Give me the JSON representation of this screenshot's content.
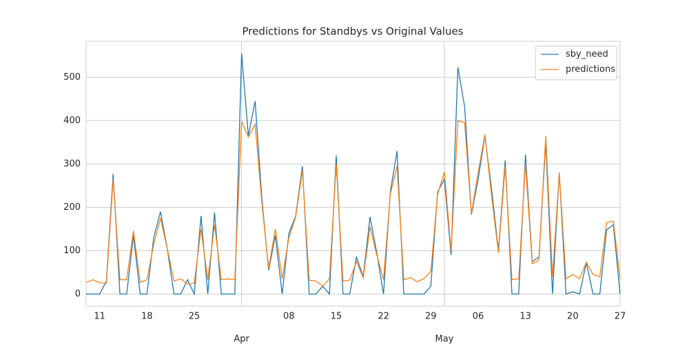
{
  "chart_data": {
    "type": "line",
    "title": "Predictions for Standbys vs Original Values",
    "x": [
      "03-09",
      "03-10",
      "03-11",
      "03-12",
      "03-13",
      "03-14",
      "03-15",
      "03-16",
      "03-17",
      "03-18",
      "03-19",
      "03-20",
      "03-21",
      "03-22",
      "03-23",
      "03-24",
      "03-25",
      "03-26",
      "03-27",
      "03-28",
      "03-29",
      "03-30",
      "03-31",
      "04-01",
      "04-02",
      "04-03",
      "04-04",
      "04-05",
      "04-06",
      "04-07",
      "04-08",
      "04-09",
      "04-10",
      "04-11",
      "04-12",
      "04-13",
      "04-14",
      "04-15",
      "04-16",
      "04-17",
      "04-18",
      "04-19",
      "04-20",
      "04-21",
      "04-22",
      "04-23",
      "04-24",
      "04-25",
      "04-26",
      "04-27",
      "04-28",
      "04-29",
      "04-30",
      "05-01",
      "05-02",
      "05-03",
      "05-04",
      "05-05",
      "05-06",
      "05-07",
      "05-08",
      "05-09",
      "05-10",
      "05-11",
      "05-12",
      "05-13",
      "05-14",
      "05-15",
      "05-16",
      "05-17",
      "05-18",
      "05-19",
      "05-20",
      "05-21",
      "05-22",
      "05-23",
      "05-24",
      "05-25",
      "05-26",
      "05-27"
    ],
    "series": [
      {
        "name": "sby_need",
        "color": "#1f77b4",
        "values": [
          0,
          0,
          0,
          30,
          277,
          0,
          0,
          135,
          0,
          0,
          130,
          190,
          105,
          0,
          0,
          33,
          0,
          180,
          0,
          188,
          0,
          0,
          0,
          555,
          365,
          445,
          220,
          55,
          135,
          0,
          140,
          180,
          295,
          0,
          0,
          18,
          0,
          320,
          0,
          0,
          85,
          40,
          178,
          95,
          0,
          235,
          330,
          0,
          0,
          0,
          0,
          18,
          235,
          265,
          90,
          523,
          432,
          183,
          265,
          365,
          240,
          100,
          308,
          0,
          0,
          322,
          75,
          85,
          350,
          0,
          280,
          0,
          5,
          0,
          72,
          0,
          0,
          148,
          160,
          0
        ]
      },
      {
        "name": "predictions",
        "color": "#ff7f0e",
        "values": [
          27,
          33,
          26,
          25,
          265,
          33,
          33,
          146,
          27,
          33,
          115,
          175,
          105,
          30,
          35,
          23,
          25,
          150,
          33,
          160,
          33,
          35,
          33,
          398,
          362,
          392,
          210,
          60,
          150,
          35,
          130,
          178,
          285,
          32,
          30,
          18,
          35,
          300,
          30,
          32,
          75,
          37,
          155,
          90,
          33,
          230,
          295,
          33,
          38,
          28,
          36,
          52,
          230,
          282,
          100,
          400,
          395,
          185,
          280,
          368,
          225,
          95,
          295,
          33,
          35,
          302,
          70,
          78,
          365,
          40,
          278,
          35,
          45,
          35,
          73,
          45,
          40,
          165,
          168,
          35
        ]
      }
    ],
    "ylim": [
      -28,
      583
    ],
    "yticks": [
      0,
      100,
      200,
      300,
      400,
      500
    ],
    "xticks": [
      {
        "value": "03-11",
        "label": "11"
      },
      {
        "value": "03-18",
        "label": "18"
      },
      {
        "value": "03-25",
        "label": "25"
      },
      {
        "value": "04-08",
        "label": "08"
      },
      {
        "value": "04-15",
        "label": "15"
      },
      {
        "value": "04-22",
        "label": "22"
      },
      {
        "value": "04-29",
        "label": "29"
      },
      {
        "value": "05-06",
        "label": "06"
      },
      {
        "value": "05-13",
        "label": "13"
      },
      {
        "value": "05-20",
        "label": "20"
      },
      {
        "value": "05-27",
        "label": "27"
      }
    ],
    "xticks_major": [
      {
        "value": "04-01",
        "label": "Apr"
      },
      {
        "value": "05-01",
        "label": "May"
      }
    ],
    "grid": true,
    "legend": "upper right"
  }
}
